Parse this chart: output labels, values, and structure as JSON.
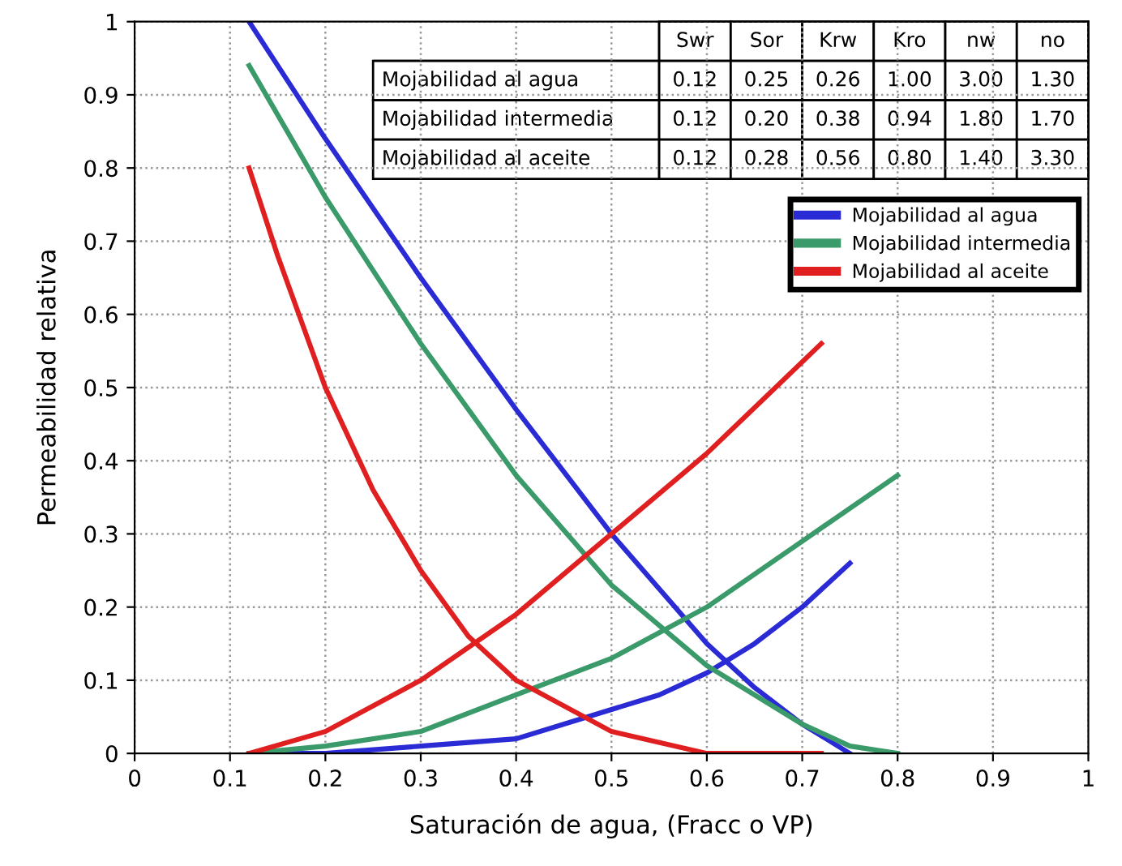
{
  "chart_data": {
    "type": "line",
    "xlabel": "Saturación de agua, (Fracc o VP)",
    "ylabel": "Permeabilidad relativa",
    "xlim": [
      0,
      1
    ],
    "ylim": [
      0,
      1
    ],
    "xticks": [
      0,
      0.1,
      0.2,
      0.3,
      0.4,
      0.5,
      0.6,
      0.7,
      0.8,
      0.9,
      1
    ],
    "yticks": [
      0,
      0.1,
      0.2,
      0.3,
      0.4,
      0.5,
      0.6,
      0.7,
      0.8,
      0.9,
      1
    ],
    "grid": true,
    "legend": "top right",
    "marker": "none",
    "line_style": "solid",
    "series": [
      {
        "name": "Mojabilidad al agua",
        "color": "#2b2bd6",
        "x": [
          0.12,
          0.2,
          0.3,
          0.4,
          0.5,
          0.55,
          0.6,
          0.65,
          0.7,
          0.75
        ],
        "values": [
          0,
          0.0,
          0.01,
          0.02,
          0.06,
          0.08,
          0.11,
          0.15,
          0.2,
          0.26
        ]
      },
      {
        "color": "#2b2bd6",
        "x": [
          0.12,
          0.2,
          0.3,
          0.4,
          0.5,
          0.6,
          0.65,
          0.7,
          0.75
        ],
        "values": [
          1.0,
          0.84,
          0.65,
          0.47,
          0.3,
          0.15,
          0.09,
          0.04,
          0
        ]
      },
      {
        "name": "Mojabilidad intermedia",
        "color": "#3a9a6a",
        "x": [
          0.12,
          0.2,
          0.3,
          0.4,
          0.5,
          0.6,
          0.7,
          0.8
        ],
        "values": [
          0,
          0.01,
          0.03,
          0.08,
          0.13,
          0.2,
          0.29,
          0.38
        ]
      },
      {
        "color": "#3a9a6a",
        "x": [
          0.12,
          0.2,
          0.3,
          0.4,
          0.5,
          0.6,
          0.7,
          0.75,
          0.8
        ],
        "values": [
          0.94,
          0.76,
          0.56,
          0.38,
          0.23,
          0.12,
          0.04,
          0.01,
          0
        ]
      },
      {
        "name": "Mojabilidad al aceite",
        "color": "#e02020",
        "x": [
          0.12,
          0.2,
          0.3,
          0.4,
          0.5,
          0.6,
          0.72
        ],
        "values": [
          0,
          0.03,
          0.1,
          0.19,
          0.3,
          0.41,
          0.56
        ]
      },
      {
        "color": "#e02020",
        "x": [
          0.12,
          0.15,
          0.2,
          0.25,
          0.3,
          0.35,
          0.4,
          0.5,
          0.6,
          0.72
        ],
        "values": [
          0.8,
          0.68,
          0.5,
          0.36,
          0.25,
          0.16,
          0.1,
          0.03,
          0.0,
          0
        ]
      }
    ],
    "annotations": [
      "Swr",
      "Sor",
      "Krw",
      "Kro",
      "nw",
      "no",
      "Mojabilidad al agua",
      "0.12",
      "0.25",
      "0.26",
      "1.00",
      "3.00",
      "1.30",
      "Mojabilidad intermedia",
      "0.12",
      "0.20",
      "0.38",
      "0.94",
      "1.80",
      "1.70",
      "Mojabilidad al aceite",
      "0.12",
      "0.28",
      "0.56",
      "0.80",
      "1.40",
      "3.30"
    ]
  }
}
